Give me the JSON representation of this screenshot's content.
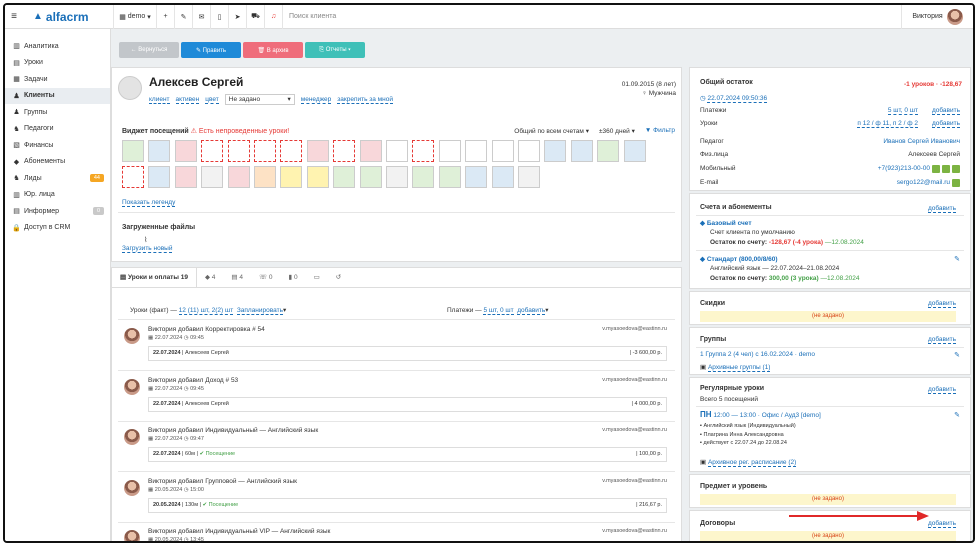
{
  "topbar": {
    "logo": "alfacrm",
    "branch": "demo",
    "search_placeholder": "Поиск клиента",
    "user": "Виктория"
  },
  "sidebar": {
    "items": [
      {
        "icon": "chart-icon",
        "label": "Аналитика"
      },
      {
        "icon": "lessons-icon",
        "label": "Уроки"
      },
      {
        "icon": "tasks-icon",
        "label": "Задачи"
      },
      {
        "icon": "clients-icon",
        "label": "Клиенты",
        "active": true
      },
      {
        "icon": "groups-icon",
        "label": "Группы"
      },
      {
        "icon": "teachers-icon",
        "label": "Педагоги"
      },
      {
        "icon": "finance-icon",
        "label": "Финансы"
      },
      {
        "icon": "subscriptions-icon",
        "label": "Абонементы"
      },
      {
        "icon": "leads-icon",
        "label": "Лиды",
        "badge": "44"
      },
      {
        "icon": "legal-icon",
        "label": "Юр. лица"
      },
      {
        "icon": "informer-icon",
        "label": "Информер",
        "badge": "0"
      },
      {
        "icon": "lock-icon",
        "label": "Доступ в CRM"
      }
    ]
  },
  "actions": {
    "back": "← Вернуться",
    "edit": "✎ Править",
    "archive": "🗑 В архив",
    "reports": "⎘ Отчеты ▾"
  },
  "client": {
    "name": "Алексев Сергей",
    "birth": "01.09.2015 (8 лет)",
    "gender": "Мужчина",
    "tags": [
      "клиент",
      "активен",
      "цвет"
    ],
    "status_value": "Не задано",
    "manager_label": "менеджер",
    "manager_value": "закрепить за мной"
  },
  "widget": {
    "title": "Виджет посещений",
    "warning": "Есть непроведенные уроки!",
    "filter_all": "Общий по всем счетам",
    "days": "±360 дней",
    "filter": "Фильтр",
    "legend": "Показать легенду"
  },
  "files": {
    "title": "Загруженные файлы",
    "upload": "Загрузить новый"
  },
  "tabs": [
    "Уроки и оплаты 19",
    "4",
    "4",
    "0",
    "0",
    "",
    ""
  ],
  "feed": {
    "lessons_summary": "Уроки (факт) —",
    "lessons_link": "12 (11) шт, 2(2) шт",
    "plan": "Запланировать",
    "payments_label": "Платежи —",
    "payments_link": "5 шт, 0 шт",
    "add": "добавить",
    "items": [
      {
        "title": "Виктория добавил Корректировка # 54",
        "author_email": "v.myasoedova@eastinn.ru",
        "date": "22.07.2024",
        "time": "09:45",
        "entry_date": "22.07.2024",
        "entry_name": "Алексеев Сергей",
        "entry_extra": "",
        "amount": "-3 600,00 р."
      },
      {
        "title": "Виктория добавил Доход # 53",
        "author_email": "v.myasoedova@eastinn.ru",
        "date": "22.07.2024",
        "time": "09:45",
        "entry_date": "22.07.2024",
        "entry_name": "Алексеев Сергей",
        "entry_extra": "",
        "amount": "4 000,00 р."
      },
      {
        "title": "Виктория добавил Индивидуальный — Английский язык",
        "author_email": "v.myasoedova@eastinn.ru",
        "date": "22.07.2024",
        "time": "09:47",
        "entry_date": "22.07.2024",
        "entry_name": "60м",
        "entry_extra": "Посещение",
        "amount": "100,00 р."
      },
      {
        "title": "Виктория добавил Групповой — Английский язык",
        "author_email": "v.myasoedova@eastinn.ru",
        "date": "20.05.2024",
        "time": "15:00",
        "entry_date": "20.05.2024",
        "entry_name": "130м",
        "entry_extra": "Посещение",
        "amount": "216,67 р."
      },
      {
        "title": "Виктория добавил Индивидуальный VIP — Английский язык",
        "author_email": "v.myasoedova@eastinn.ru",
        "date": "20.05.2024",
        "time": "13:45",
        "entry_date": "",
        "entry_name": "",
        "entry_extra": "",
        "amount": ""
      }
    ]
  },
  "right": {
    "balance_title": "Общий остаток",
    "balance_value": "-1 уроков · -128,67",
    "balance_date": "22.07.2024 09:50:36",
    "payments_label": "Платежи",
    "payments_value": "5 шт, 0 шт",
    "lessons_label": "Уроки",
    "lessons_value": "п 12 / ф 11, п 2 / ф 2",
    "add": "добавить",
    "teacher_label": "Педагог",
    "teacher_value": "Иванов Сергей Иванович",
    "person_label": "Физ.лица",
    "person_value": "Алексеев Сергей",
    "mobile_label": "Мобильный",
    "mobile_value": "+7(923)213-00-00",
    "email_label": "E-mail",
    "email_value": "sergo122@mail.ru",
    "accounts_title": "Счета и абонементы",
    "base_account": "Базовый счет",
    "base_default": "Счет клиента по умолчанию",
    "base_balance_label": "Остаток по счету:",
    "base_balance": "-128,67 (-4 урока)",
    "base_date": "—12.08.2024",
    "std": "Стандарт (800,00/8/60)",
    "std_lang": "Английский язык",
    "std_dates": "22.07.2024–21.08.2024",
    "std_balance_label": "Остаток по счету:",
    "std_balance": "300,00 (3 урока)",
    "std_date": "—12.08.2024",
    "discounts_title": "Скидки",
    "not_set": "(не задано)",
    "groups_title": "Группы",
    "group_value": "1 Группа 2 (4 чел) с 16.02.2024 · demo",
    "groups_archive": "Архивные группы (1)",
    "regular_title": "Регулярные уроки",
    "regular_sub": "Всего 5 посещений",
    "regular_day": "ПН",
    "regular_time": "12:00 — 13:00 · Офис / Ауд3 [demo]",
    "regular_l1": "Английский язык (Индивидуальный)",
    "regular_l2": "Плагрина Инна Александровна",
    "regular_l3": "действует с 22.07.24 до 22.08.24",
    "regular_archive": "Архивное рег. расписание (2)",
    "subject_title": "Предмет и уровень",
    "contracts_title": "Договоры"
  }
}
